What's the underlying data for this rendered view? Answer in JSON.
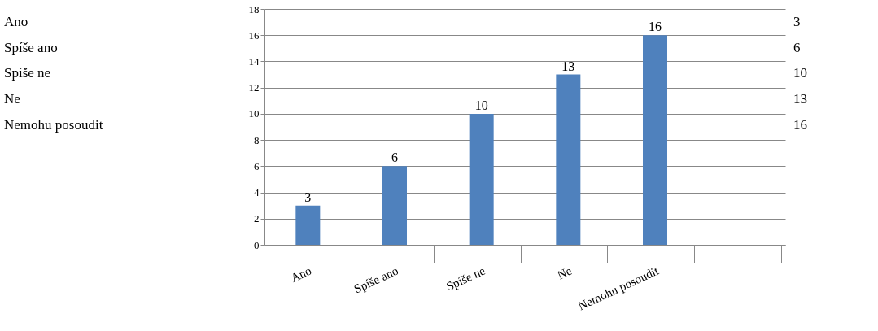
{
  "chart_data": {
    "type": "bar",
    "categories": [
      "Ano",
      "Spíše ano",
      "Spíše ne",
      "Ne",
      "Nemohu posoudit",
      null
    ],
    "values": [
      3,
      6,
      10,
      13,
      16,
      null
    ],
    "color": "#4f81bd",
    "ylim": [
      0,
      18
    ],
    "yticks": [
      0,
      2,
      4,
      6,
      8,
      10,
      12,
      14,
      16,
      18
    ],
    "grid": "y",
    "data_labels": true,
    "annotations": [
      "3",
      "6",
      "10",
      "13",
      "16"
    ]
  }
}
